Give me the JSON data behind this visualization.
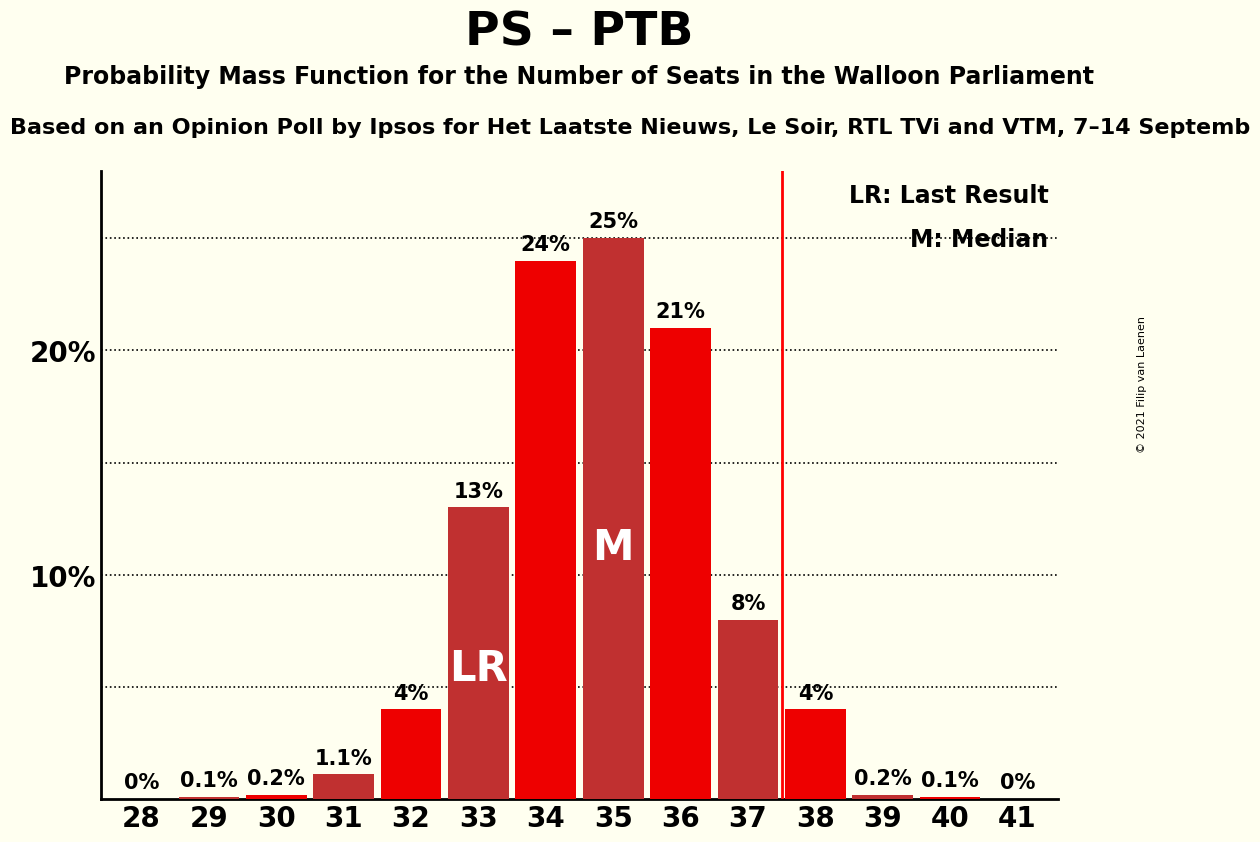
{
  "title": "PS – PTB",
  "subtitle1": "Probability Mass Function for the Number of Seats in the Walloon Parliament",
  "subtitle2": "Based on an Opinion Poll by Ipsos for Het Laatste Nieuws, Le Soir, RTL TVi and VTM, 7–14 Septemb",
  "categories": [
    28,
    29,
    30,
    31,
    32,
    33,
    34,
    35,
    36,
    37,
    38,
    39,
    40,
    41
  ],
  "values": [
    0.0,
    0.1,
    0.2,
    1.1,
    4.0,
    13.0,
    24.0,
    25.0,
    21.0,
    8.0,
    4.0,
    0.2,
    0.1,
    0.0
  ],
  "labels": [
    "0%",
    "0.1%",
    "0.2%",
    "1.1%",
    "4%",
    "13%",
    "24%",
    "25%",
    "21%",
    "8%",
    "4%",
    "0.2%",
    "0.1%",
    "0%"
  ],
  "bar_color_bright": "#EE0000",
  "bar_color_dark": "#C03030",
  "last_result_seat": 33,
  "median_seat": 35,
  "lr_line_seat": 37.5,
  "background_color": "#FFFFF0",
  "copyright": "© 2021 Filip van Laenen",
  "title_fontsize": 34,
  "subtitle1_fontsize": 17,
  "subtitle2_fontsize": 16,
  "bar_label_fontsize": 15,
  "axis_label_fontsize": 20,
  "legend_fontsize": 17,
  "inside_label_fontsize": 30
}
